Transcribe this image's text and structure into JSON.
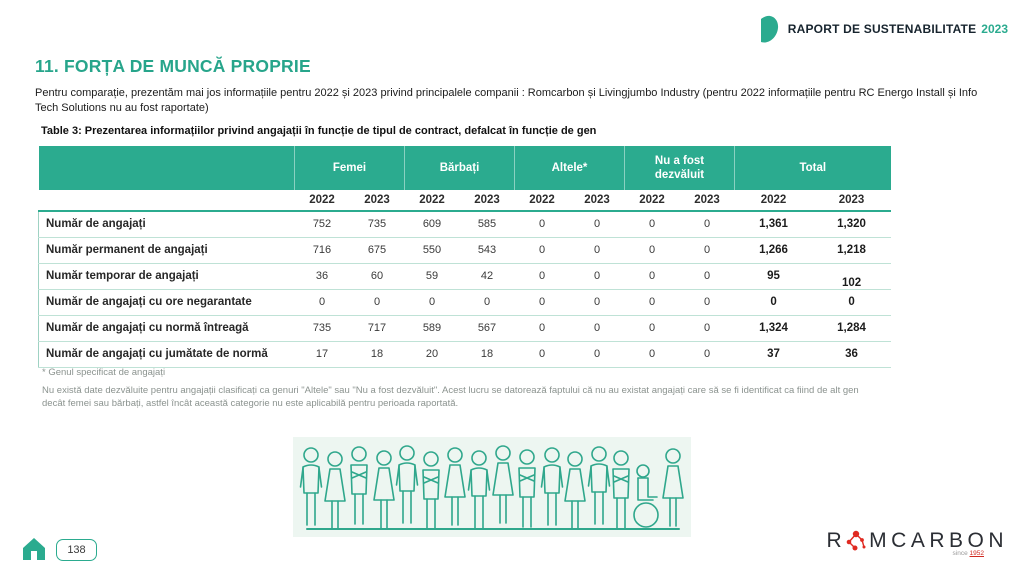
{
  "header": {
    "report_title": "RAPORT DE SUSTENABILITATE",
    "report_year": "2023"
  },
  "page": {
    "title": "11. FORȚA DE MUNCĂ PROPRIE",
    "intro": "Pentru comparație, prezentăm mai jos informațiile pentru 2022 și 2023 privind principalele companii : Romcarbon și Livingjumbo Industry (pentru 2022 informațiile pentru RC Energo Install și Info Tech Solutions nu au fost raportate)"
  },
  "table": {
    "caption_prefix": "Table 3: Prezentarea informațiilor privind angajații în funcție de tipul de contract, defalcat în funcție de ",
    "caption_bold": "gen",
    "groups": [
      "Femei",
      "Bărbați",
      "Altele*",
      "Nu a fost dezvăluit",
      "Total"
    ],
    "years": [
      "2022",
      "2023"
    ],
    "rows": [
      {
        "label": "Număr de angajați",
        "values": [
          "752",
          "735",
          "609",
          "585",
          "0",
          "0",
          "0",
          "0",
          "1,361",
          "1,320"
        ]
      },
      {
        "label": "Număr permanent de angajați",
        "values": [
          "716",
          "675",
          "550",
          "543",
          "0",
          "0",
          "0",
          "0",
          "1,266",
          "1,218"
        ]
      },
      {
        "label": "Număr temporar de angajați",
        "values": [
          "36",
          "60",
          "59",
          "42",
          "0",
          "0",
          "0",
          "0",
          "95",
          "102"
        ]
      },
      {
        "label": "Număr de angajați cu ore negarantate",
        "values": [
          "0",
          "0",
          "0",
          "0",
          "0",
          "0",
          "0",
          "0",
          "0",
          "0"
        ]
      },
      {
        "label": "Număr de angajați cu normă întreagă",
        "values": [
          "735",
          "717",
          "589",
          "567",
          "0",
          "0",
          "0",
          "0",
          "1,324",
          "1,284"
        ]
      },
      {
        "label": "Număr de angajați cu jumătate de normă",
        "values": [
          "17",
          "18",
          "20",
          "18",
          "0",
          "0",
          "0",
          "0",
          "37",
          "36"
        ]
      }
    ],
    "footnote_gender": "* Genul specificat de angajați",
    "footnote_disclosure": "Nu există date dezvăluite pentru angajații clasificați ca genuri \"Altele\" sau \"Nu a fost dezvăluit\". Acest lucru se datorează faptului că nu au existat angajați care să se fi identificat ca fiind de alt gen decât femei sau bărbați, astfel încât această categorie nu este aplicabilă pentru perioada raportată."
  },
  "footer": {
    "page_number": "138"
  },
  "logo": {
    "part1": "R",
    "part2": "MCARBON",
    "since_label": "since",
    "since_year": "1952"
  },
  "icons": {
    "header_accent": "leaf-shape",
    "home": "house",
    "logo_o": "molecule-network",
    "illustration": "crowd-of-people-sketch"
  },
  "colors": {
    "accent_teal": "#2bab8f",
    "title_teal": "#27a58b",
    "table_row_border": "#bfe2d6",
    "logo_red": "#e02a21",
    "dark_text": "#17242e",
    "footnote_gray": "#8b938f"
  }
}
